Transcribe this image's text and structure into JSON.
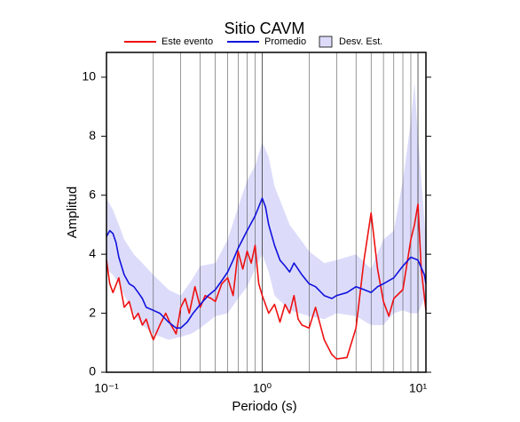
{
  "chart_data": {
    "type": "line",
    "title": "Sitio CAVM",
    "x_label": "Periodo (s)",
    "y_label": "Amplitud",
    "xscale": "log",
    "xlim": [
      0.1,
      11.25
    ],
    "ylim": [
      0,
      10.84
    ],
    "xticks": [
      {
        "value": 0.1,
        "label": "10⁻¹"
      },
      {
        "value": 1,
        "label": "10⁰"
      },
      {
        "value": 10,
        "label": "10¹"
      }
    ],
    "xgrid": [
      0.2,
      0.3,
      0.4,
      0.5,
      0.6,
      0.7,
      0.8,
      0.9,
      2,
      3,
      4,
      5,
      6,
      7,
      8,
      9
    ],
    "yticks": [
      0,
      2,
      4,
      6,
      8,
      10
    ],
    "band": {
      "name": "Desv. Est.",
      "color": "#dcdcfa",
      "x": [
        0.1,
        0.11,
        0.12,
        0.13,
        0.15,
        0.17,
        0.2,
        0.25,
        0.3,
        0.35,
        0.4,
        0.5,
        0.6,
        0.7,
        0.8,
        0.9,
        1.0,
        1.1,
        1.2,
        1.5,
        2,
        2.5,
        3,
        4,
        5,
        6,
        7,
        8,
        9,
        9.5,
        10,
        11.25
      ],
      "lower": [
        3.5,
        3.3,
        3.0,
        2.6,
        2.0,
        1.6,
        1.3,
        1.1,
        1.2,
        1.3,
        1.5,
        1.9,
        2.0,
        2.5,
        2.9,
        3.5,
        4.0,
        3.4,
        2.6,
        2.1,
        1.9,
        1.8,
        2.0,
        1.9,
        1.6,
        1.6,
        2.0,
        2.1,
        2.0,
        2.0,
        2.0,
        2.6
      ],
      "upper": [
        5.9,
        5.5,
        5.0,
        4.5,
        4.0,
        3.7,
        3.3,
        2.8,
        2.6,
        3.1,
        3.6,
        3.7,
        4.5,
        5.6,
        6.5,
        7.0,
        7.8,
        7.3,
        6.3,
        5.0,
        4.1,
        3.7,
        3.8,
        4.0,
        3.5,
        4.5,
        4.8,
        6.5,
        8.5,
        9.8,
        8.0,
        4.5
      ]
    },
    "series": [
      {
        "name": "Este evento",
        "color": "#ee1111",
        "x": [
          0.1,
          0.105,
          0.11,
          0.12,
          0.13,
          0.14,
          0.15,
          0.16,
          0.17,
          0.18,
          0.19,
          0.2,
          0.22,
          0.24,
          0.26,
          0.28,
          0.3,
          0.32,
          0.34,
          0.37,
          0.4,
          0.43,
          0.47,
          0.5,
          0.55,
          0.6,
          0.65,
          0.7,
          0.75,
          0.8,
          0.85,
          0.9,
          0.95,
          1.0,
          1.1,
          1.2,
          1.3,
          1.4,
          1.5,
          1.6,
          1.7,
          1.8,
          2.0,
          2.2,
          2.5,
          2.8,
          3.0,
          3.5,
          4.0,
          4.5,
          5.0,
          5.5,
          6.0,
          6.5,
          7.0,
          8.0,
          9.0,
          9.5,
          10,
          10.5,
          11.25
        ],
        "values": [
          3.8,
          3.0,
          2.7,
          3.2,
          2.2,
          2.4,
          1.8,
          2.0,
          1.6,
          1.8,
          1.4,
          1.1,
          1.6,
          2.0,
          1.6,
          1.3,
          2.2,
          2.5,
          2.0,
          2.9,
          2.2,
          2.6,
          2.5,
          2.4,
          3.0,
          3.2,
          2.6,
          4.1,
          3.5,
          4.1,
          3.7,
          4.3,
          3.0,
          2.6,
          2.0,
          2.3,
          1.7,
          2.3,
          2.0,
          2.6,
          1.8,
          1.6,
          1.5,
          2.2,
          1.1,
          0.6,
          0.45,
          0.5,
          1.5,
          3.8,
          5.4,
          3.5,
          2.4,
          1.9,
          2.5,
          2.8,
          4.5,
          5.0,
          5.7,
          3.5,
          2.1
        ]
      },
      {
        "name": "Promedio",
        "color": "#1111dd",
        "x": [
          0.1,
          0.105,
          0.11,
          0.115,
          0.12,
          0.13,
          0.14,
          0.15,
          0.16,
          0.17,
          0.18,
          0.2,
          0.22,
          0.25,
          0.28,
          0.3,
          0.33,
          0.36,
          0.4,
          0.45,
          0.5,
          0.55,
          0.6,
          0.65,
          0.7,
          0.8,
          0.9,
          1.0,
          1.05,
          1.1,
          1.2,
          1.3,
          1.4,
          1.5,
          1.6,
          1.8,
          2.0,
          2.2,
          2.5,
          2.8,
          3.0,
          3.5,
          4.0,
          4.5,
          5.0,
          5.5,
          6.0,
          7.0,
          8.0,
          9.0,
          10,
          11,
          11.25
        ],
        "values": [
          4.6,
          4.8,
          4.7,
          4.4,
          3.9,
          3.3,
          3.0,
          2.9,
          2.7,
          2.5,
          2.2,
          2.1,
          2.0,
          1.7,
          1.5,
          1.5,
          1.7,
          2.0,
          2.3,
          2.6,
          2.8,
          3.1,
          3.4,
          3.8,
          4.2,
          4.8,
          5.3,
          5.9,
          5.6,
          5.0,
          4.3,
          3.8,
          3.6,
          3.4,
          3.7,
          3.3,
          3.0,
          2.9,
          2.6,
          2.5,
          2.6,
          2.7,
          2.9,
          2.8,
          2.7,
          2.9,
          3.0,
          3.2,
          3.6,
          3.9,
          3.8,
          3.3,
          3.0
        ]
      }
    ]
  }
}
